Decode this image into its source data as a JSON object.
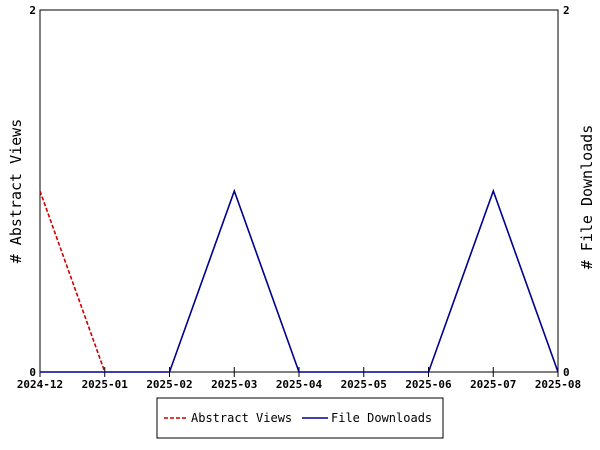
{
  "chart_data": {
    "type": "line",
    "categories": [
      "2024-12",
      "2025-01",
      "2025-02",
      "2025-03",
      "2025-04",
      "2025-05",
      "2025-06",
      "2025-07",
      "2025-08"
    ],
    "series": [
      {
        "name": "Abstract Views",
        "axis": "left",
        "style": "dashed",
        "color": "#cc0000",
        "values": [
          1,
          0,
          null,
          null,
          null,
          null,
          null,
          null,
          null
        ]
      },
      {
        "name": "File Downloads",
        "axis": "right",
        "style": "solid",
        "color": "#00008b",
        "values": [
          0,
          0,
          0,
          1,
          0,
          0,
          0,
          1,
          0
        ]
      }
    ],
    "ylabel_left": "# Abstract Views",
    "ylabel_right": "# File Downloads",
    "ylim_left": [
      0,
      2
    ],
    "ylim_right": [
      0,
      2
    ],
    "yticks_left": [
      "0",
      "2"
    ],
    "yticks_right": [
      "0",
      "2"
    ],
    "grid": false,
    "legend_position": "bottom-center"
  }
}
